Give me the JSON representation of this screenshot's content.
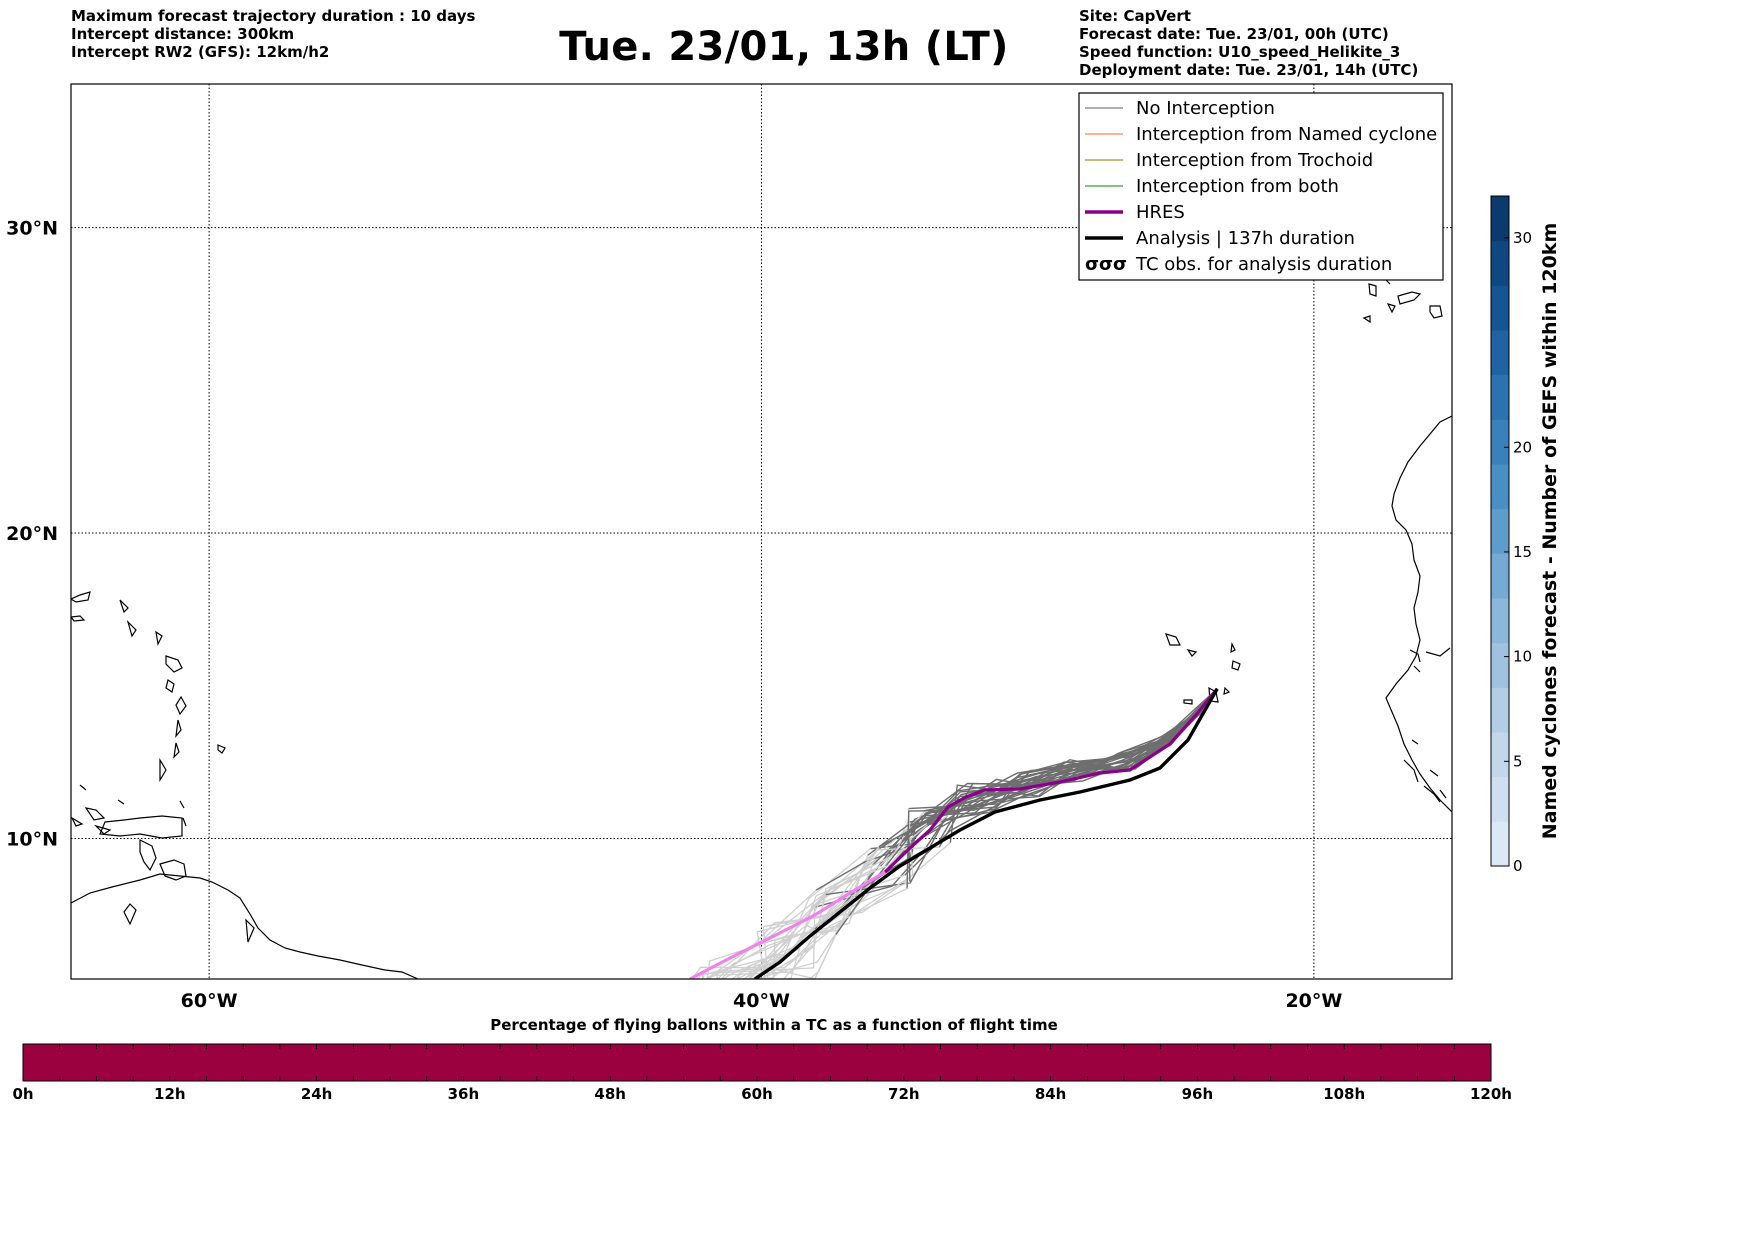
{
  "header": {
    "title": "Tue. 23/01, 13h (LT)",
    "left_lines": [
      "Maximum forecast trajectory duration : 10 days",
      "Intercept distance: 300km",
      "Intercept RW2 (GFS):  12km/h2"
    ],
    "right_lines": [
      "Site: CapVert",
      "Forecast date: Tue. 23/01, 00h (UTC)",
      "Speed function: U10_speed_Helikite_3",
      "Deployment date: Tue. 23/01, 14h (UTC)"
    ]
  },
  "map": {
    "lon_range": [
      -65,
      -15
    ],
    "lat_range": [
      5.4,
      34.7
    ],
    "lat_labels": [
      "30°N",
      "20°N",
      "10°N"
    ],
    "lat_values": [
      30,
      20,
      10
    ],
    "lon_labels": [
      "60°W",
      "40°W",
      "20°W"
    ],
    "lon_values": [
      -60,
      -40,
      -20
    ],
    "launch_site": {
      "lon": -23.5,
      "lat": 14.9
    },
    "colors": {
      "no_interception": "#808080",
      "named_cyclone": "#ff7f50",
      "trochoid": "#a0922a",
      "both": "#3a9a3a",
      "hres": "#8b008b",
      "hres_light": "#ee82ee",
      "analysis": "#000000",
      "ensemble_far": "#cfcfcf",
      "ensemble_near": "#6e6e6e"
    }
  },
  "legend": {
    "items": [
      {
        "label": "No Interception",
        "color": "#808080",
        "style": "thin"
      },
      {
        "label": "Interception from Named cyclone",
        "color": "#ff7f50",
        "style": "thin"
      },
      {
        "label": "Interception from Trochoid",
        "color": "#a0922a",
        "style": "thin"
      },
      {
        "label": "Interception from both",
        "color": "#3a9a3a",
        "style": "thin"
      },
      {
        "label": "HRES",
        "color": "#8b008b",
        "style": "thick"
      },
      {
        "label": "Analysis | 137h duration",
        "color": "#000000",
        "style": "thick"
      },
      {
        "label": "TC obs. for analysis duration",
        "color": "#000000",
        "style": "tc-symbol"
      }
    ]
  },
  "colorbar_right": {
    "label": "Named cyclones forecast - Number of GEFS within 120km",
    "ticks": [
      "0",
      "5",
      "10",
      "15",
      "20",
      "30"
    ],
    "tick_values": [
      0,
      5,
      10,
      15,
      20,
      30
    ],
    "max": 32,
    "colors": [
      "#dbe8f6",
      "#cfdff1",
      "#c2d7ec",
      "#b2cde6",
      "#9fc2e1",
      "#8bb7db",
      "#75aad4",
      "#5e9ccc",
      "#4a8fc4",
      "#3a81bb",
      "#2c72b0",
      "#1f63a3",
      "#165594",
      "#0f4783",
      "#0b3a6f"
    ]
  },
  "colorbar_bottom": {
    "label": "Percentage of flying ballons within a TC as a function of flight time",
    "ticks": [
      "0h",
      "12h",
      "24h",
      "36h",
      "48h",
      "60h",
      "72h",
      "84h",
      "96h",
      "108h",
      "120h"
    ],
    "fill_color": "#9b003f"
  }
}
